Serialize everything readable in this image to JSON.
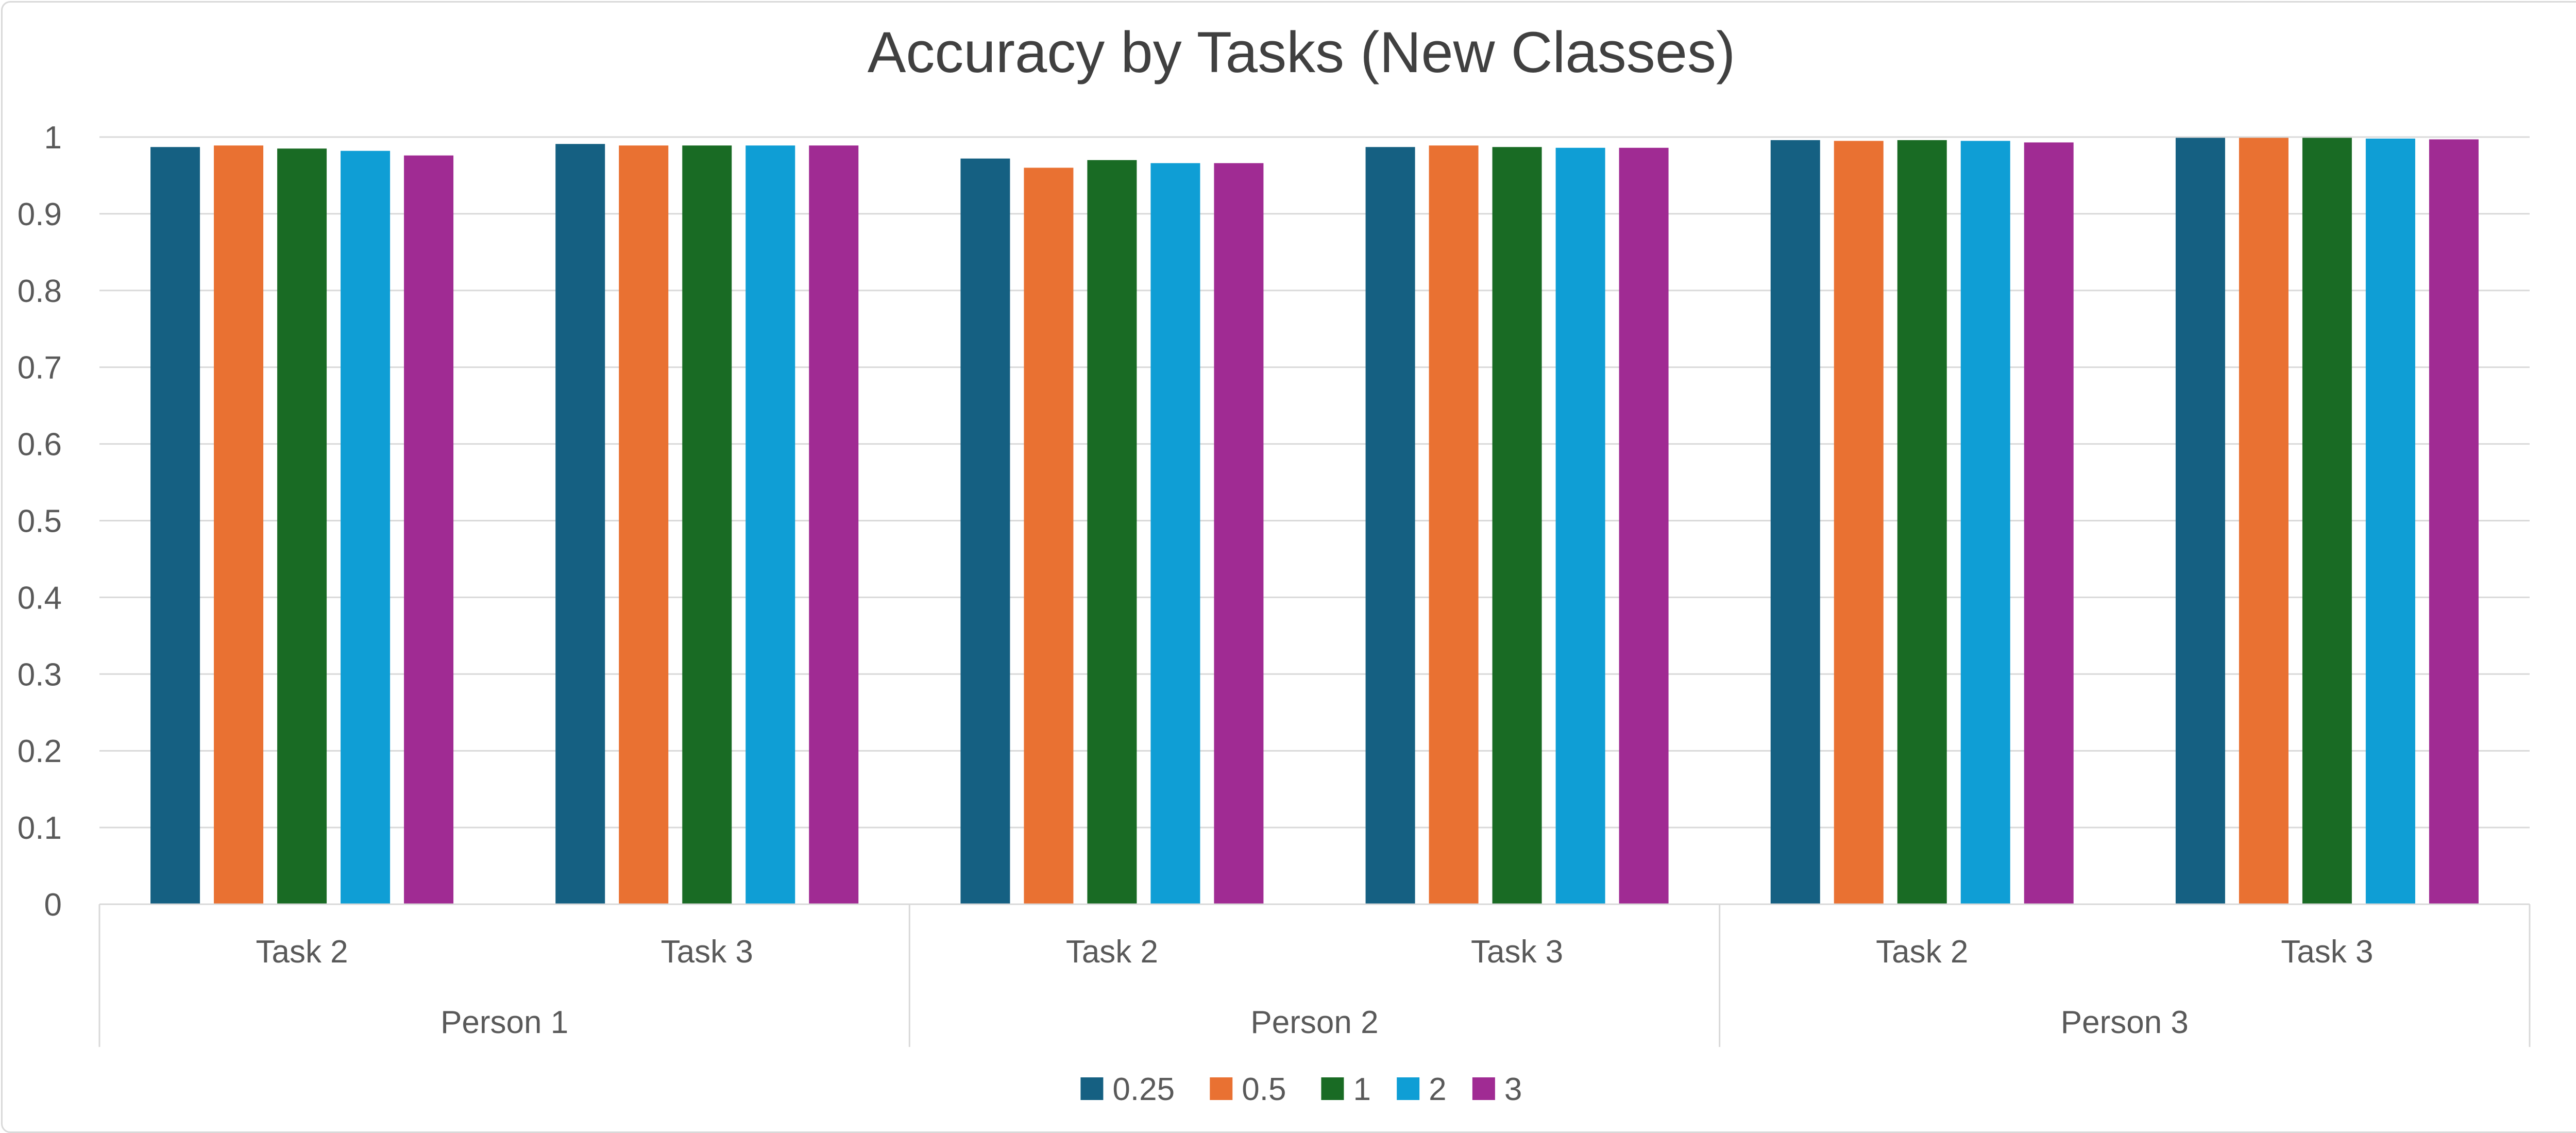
{
  "chart_data": {
    "type": "bar",
    "title": "Accuracy by Tasks (New Classes)",
    "xlabel": "",
    "ylabel": "",
    "ylim": [
      0,
      1
    ],
    "yticks": [
      0,
      0.1,
      0.2,
      0.3,
      0.4,
      0.5,
      0.6,
      0.7,
      0.8,
      0.9,
      1
    ],
    "grid": true,
    "legend_position": "bottom",
    "groups": [
      {
        "label": "Person 1",
        "categories": [
          "Task 2",
          "Task 3"
        ]
      },
      {
        "label": "Person 2",
        "categories": [
          "Task 2",
          "Task 3"
        ]
      },
      {
        "label": "Person 3",
        "categories": [
          "Task 2",
          "Task 3"
        ]
      }
    ],
    "series": [
      {
        "name": "0.25",
        "color": "#156082",
        "values": [
          0.987,
          0.991,
          0.972,
          0.987,
          0.996,
          0.999
        ]
      },
      {
        "name": "0.5",
        "color": "#E97132",
        "values": [
          0.989,
          0.989,
          0.96,
          0.989,
          0.995,
          0.999
        ]
      },
      {
        "name": "1",
        "color": "#196B24",
        "values": [
          0.985,
          0.989,
          0.97,
          0.987,
          0.996,
          0.999
        ]
      },
      {
        "name": "2",
        "color": "#0F9ED5",
        "values": [
          0.982,
          0.989,
          0.966,
          0.986,
          0.995,
          0.998
        ]
      },
      {
        "name": "3",
        "color": "#A02B93",
        "values": [
          0.976,
          0.989,
          0.966,
          0.986,
          0.993,
          0.997
        ]
      }
    ]
  }
}
